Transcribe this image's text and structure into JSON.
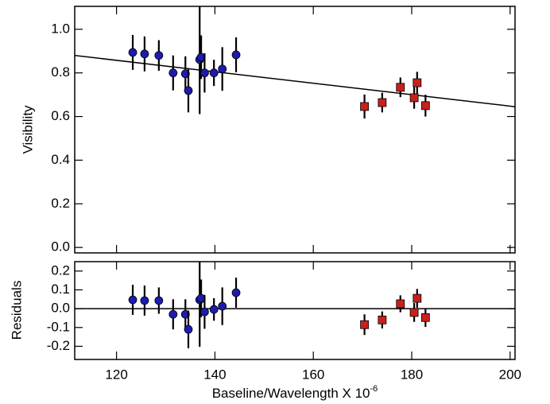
{
  "chart_data": [
    {
      "type": "scatter",
      "ylabel": "Visibility",
      "xlim": [
        111.5,
        201
      ],
      "ylim": [
        -0.025,
        1.105
      ],
      "yticks": [
        {
          "value": 0,
          "label": "0.0"
        },
        0.2,
        0.4,
        0.6,
        0.8,
        {
          "value": 1,
          "label": "1.0"
        }
      ],
      "fit": {
        "x": [
          111.5,
          201
        ],
        "y": [
          0.88,
          0.645
        ],
        "color": "#000000"
      },
      "series": [
        {
          "marker": "circle",
          "color": "#1c1cb0",
          "x": [
            123.3,
            125.7,
            128.6,
            131.5,
            134.0,
            134.6,
            136.9,
            137.2,
            137.9,
            139.8,
            141.5,
            144.3
          ],
          "values": [
            0.894,
            0.887,
            0.88,
            0.8,
            0.796,
            0.719,
            0.861,
            0.872,
            0.8,
            0.8,
            0.818,
            0.883
          ],
          "errors": [
            0.08,
            0.08,
            0.07,
            0.08,
            0.08,
            0.1,
            0.25,
            0.1,
            0.09,
            0.06,
            0.1,
            0.08
          ]
        },
        {
          "marker": "square",
          "color": "#c8201c",
          "x": [
            170.4,
            174.0,
            177.7,
            180.5,
            181.1,
            182.8
          ],
          "values": [
            0.646,
            0.664,
            0.734,
            0.686,
            0.755,
            0.65
          ],
          "errors": [
            0.055,
            0.045,
            0.045,
            0.05,
            0.05,
            0.05
          ]
        }
      ]
    },
    {
      "type": "scatter",
      "ylabel": "Residuals",
      "xlabel": "Baseline/Wavelength X 10",
      "xlabel_exponent": "-6",
      "xlim": [
        111.5,
        201
      ],
      "ylim": [
        -0.27,
        0.25
      ],
      "xticks": [
        120,
        140,
        160,
        180,
        200
      ],
      "yticks": [
        {
          "value": 0.2,
          "label": "0.2"
        },
        {
          "value": 0.1,
          "label": "0.1"
        },
        {
          "value": 0,
          "label": "0.0"
        },
        {
          "value": -0.1,
          "label": "-0.1"
        },
        {
          "value": -0.2,
          "label": "-0.2"
        }
      ],
      "fit": {
        "x": [
          111.5,
          201
        ],
        "y": [
          0,
          0
        ],
        "color": "#000000"
      },
      "series": [
        {
          "marker": "circle",
          "color": "#1c1cb0",
          "x": [
            123.3,
            125.7,
            128.6,
            131.5,
            134.0,
            134.6,
            136.9,
            137.2,
            137.9,
            139.8,
            141.5,
            144.3
          ],
          "values": [
            0.047,
            0.043,
            0.043,
            -0.03,
            -0.03,
            -0.11,
            0.047,
            0.055,
            -0.017,
            -0.004,
            0.013,
            0.085
          ],
          "errors": [
            0.08,
            0.08,
            0.07,
            0.08,
            0.08,
            0.1,
            0.25,
            0.1,
            0.09,
            0.06,
            0.1,
            0.08
          ]
        },
        {
          "marker": "square",
          "color": "#c8201c",
          "x": [
            170.4,
            174.0,
            177.7,
            180.5,
            181.1,
            182.8
          ],
          "values": [
            -0.085,
            -0.06,
            0.026,
            -0.02,
            0.055,
            -0.047
          ],
          "errors": [
            0.055,
            0.045,
            0.045,
            0.05,
            0.05,
            0.05
          ]
        }
      ]
    }
  ]
}
